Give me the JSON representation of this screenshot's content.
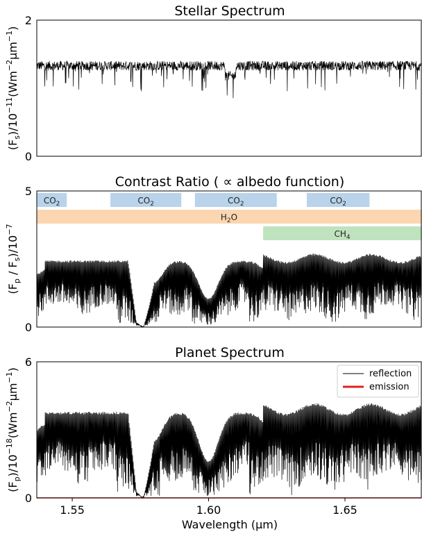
{
  "chart_data": [
    {
      "type": "line",
      "title": "Stellar Spectrum",
      "xlabel": "",
      "ylabel_parts": [
        "(F",
        "s",
        ")/10",
        "−11",
        "(Wm",
        "−2",
        "μm",
        "−1",
        ")"
      ],
      "ylim": [
        0,
        2
      ],
      "xlim": [
        1.537,
        1.678
      ],
      "yticks": [
        "0",
        "2"
      ],
      "series": [
        {
          "color": "#000000",
          "baseline": 1.33,
          "noise": 0.07,
          "dips": "many narrow absorption lines down to ~0.9"
        }
      ]
    },
    {
      "type": "line",
      "title": "Contrast Ratio ( ∝ albedo function)",
      "xlabel": "",
      "ylabel_parts": [
        "(F",
        "p",
        " / F",
        "s",
        ")/10",
        "−7"
      ],
      "ylim": [
        0,
        5
      ],
      "xlim": [
        1.537,
        1.678
      ],
      "yticks": [
        "0",
        "5"
      ],
      "bands": [
        {
          "label": "CO",
          "sub": "2",
          "x0": 1.537,
          "x1": 1.548,
          "row": 0,
          "color": "#b8d3ea"
        },
        {
          "label": "CO",
          "sub": "2",
          "x0": 1.564,
          "x1": 1.59,
          "row": 0,
          "color": "#b8d3ea"
        },
        {
          "label": "CO",
          "sub": "2",
          "x0": 1.595,
          "x1": 1.625,
          "row": 0,
          "color": "#b8d3ea"
        },
        {
          "label": "CO",
          "sub": "2",
          "x0": 1.636,
          "x1": 1.659,
          "row": 0,
          "color": "#b8d3ea"
        },
        {
          "label": "H",
          "sub": "2",
          "label2": "O",
          "x0": 1.537,
          "x1": 1.678,
          "row": 1,
          "color": "#fcd6b1"
        },
        {
          "label": "CH",
          "sub": "4",
          "x0": 1.62,
          "x1": 1.678,
          "row": 2,
          "color": "#bfe3bf"
        }
      ],
      "series": [
        {
          "color": "#000000"
        }
      ]
    },
    {
      "type": "line",
      "title": "Planet Spectrum",
      "xlabel": "Wavelength (μm)",
      "ylabel_parts": [
        "(F",
        "p",
        ")/10",
        "−18",
        "(Wm",
        "−2",
        "μm",
        "−1",
        ")"
      ],
      "ylim": [
        0,
        6
      ],
      "xlim": [
        1.537,
        1.678
      ],
      "yticks": [
        "0",
        "6"
      ],
      "xticks": [
        "1.55",
        "1.60",
        "1.65"
      ],
      "xtick_values": [
        1.55,
        1.6,
        1.65
      ],
      "legend": {
        "placement": "top-right",
        "entries": [
          {
            "name": "reflection",
            "color": "#000000"
          },
          {
            "name": "emission",
            "color": "#e02020"
          }
        ]
      },
      "series": [
        {
          "name": "reflection",
          "color": "#000000"
        },
        {
          "name": "emission",
          "color": "#e02020",
          "value": 0
        }
      ]
    }
  ]
}
